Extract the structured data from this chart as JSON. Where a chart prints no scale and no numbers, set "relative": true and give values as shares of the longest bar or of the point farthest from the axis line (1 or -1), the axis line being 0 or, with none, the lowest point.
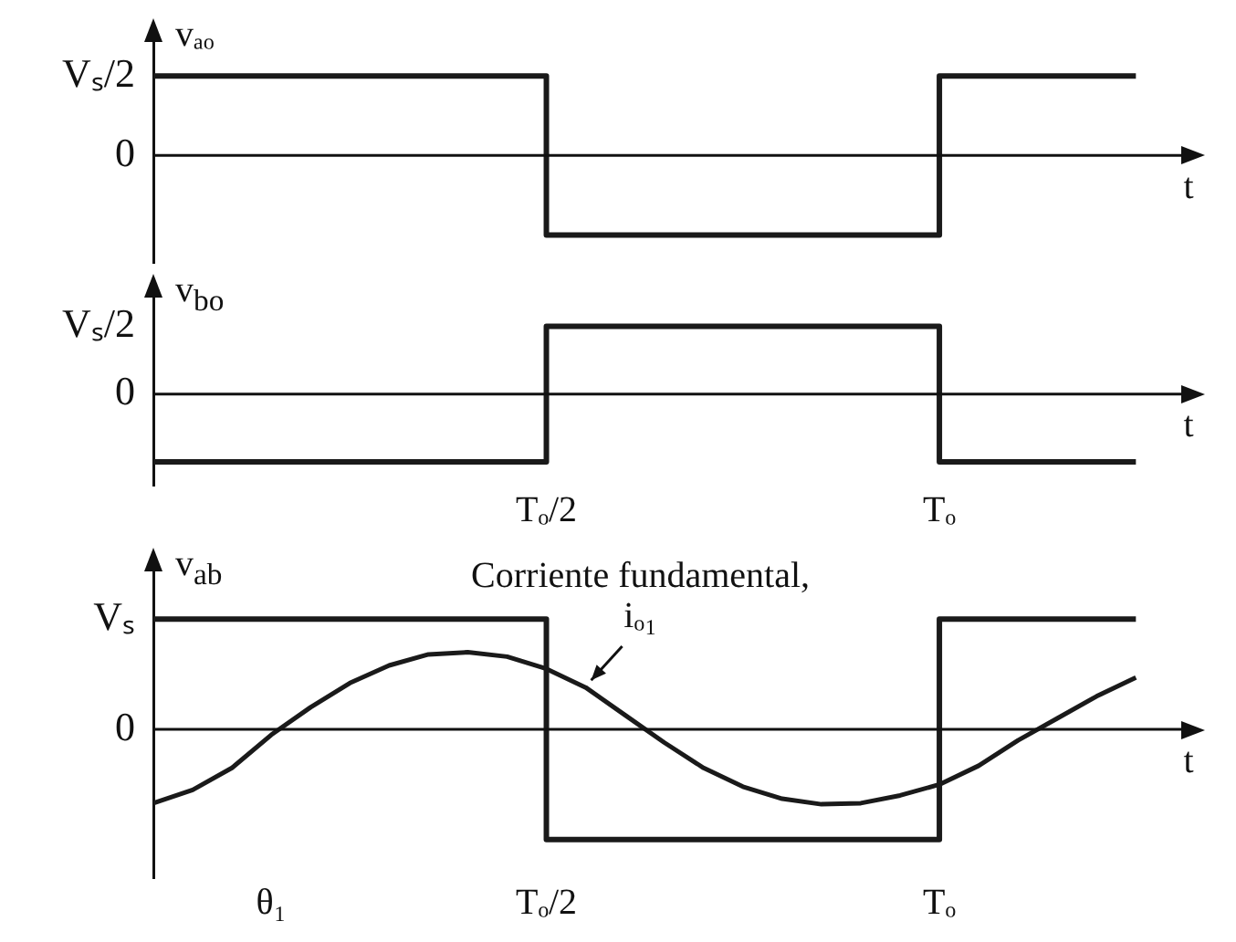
{
  "chart_data": [
    {
      "type": "step",
      "relative": true,
      "ylabel": "vₐₒ",
      "xlabel": "t",
      "grid": false,
      "legend": false,
      "categories": [
        null,
        null,
        null,
        null,
        null,
        null,
        null,
        null,
        null,
        null,
        null,
        null,
        null,
        null,
        null,
        null,
        null,
        null,
        null,
        null,
        null,
        null,
        null,
        null,
        null,
        null
      ],
      "annotations": [
        "Vₛ/2",
        "0"
      ],
      "series": [
        {
          "color": "#1a1a1a",
          "values": [
            1,
            1,
            1,
            1,
            1,
            1,
            1,
            1,
            1,
            1,
            -1,
            -1,
            -1,
            -1,
            -1,
            -1,
            -1,
            -1,
            -1,
            -1,
            1,
            1,
            1,
            1,
            1,
            1
          ]
        }
      ]
    },
    {
      "type": "step",
      "relative": true,
      "ylabel": "v$_{bo}$",
      "xlabel": "t",
      "grid": false,
      "legend": false,
      "categories": [
        null,
        null,
        null,
        null,
        null,
        null,
        null,
        null,
        null,
        null,
        "Tₒ/2",
        null,
        null,
        null,
        null,
        null,
        null,
        null,
        null,
        null,
        "Tₒ",
        null,
        null,
        null,
        null,
        null
      ],
      "annotations": [
        "Vₛ/2",
        "0"
      ],
      "series": [
        {
          "color": "#1a1a1a",
          "values": [
            -1,
            -1,
            -1,
            -1,
            -1,
            -1,
            -1,
            -1,
            -1,
            -1,
            1,
            1,
            1,
            1,
            1,
            1,
            1,
            1,
            1,
            1,
            -1,
            -1,
            -1,
            -1,
            -1,
            -1
          ]
        }
      ]
    },
    {
      "type": "step",
      "relative": true,
      "ylabel": "v$_{ab}$",
      "xlabel": "t",
      "grid": false,
      "legend": false,
      "categories": [
        null,
        null,
        null,
        "θ₁",
        null,
        null,
        null,
        null,
        null,
        null,
        "Tₒ/2",
        null,
        null,
        null,
        null,
        null,
        null,
        null,
        null,
        null,
        "Tₒ",
        null,
        null,
        null,
        null,
        null
      ],
      "annotations": [
        "Vₛ",
        "0",
        "Corriente fundamental, iₒ₁"
      ],
      "series": [
        {
          "color": "#1a1a1a",
          "values": [
            1,
            1,
            1,
            1,
            1,
            1,
            1,
            1,
            1,
            1,
            -1,
            -1,
            -1,
            -1,
            -1,
            -1,
            -1,
            -1,
            -1,
            -1,
            1,
            1,
            1,
            1,
            1,
            1
          ]
        },
        {
          "type": "line",
          "color": "#1a1a1a",
          "values": [
            -0.67,
            -0.55,
            -0.35,
            -0.05,
            0.2,
            0.42,
            0.58,
            0.68,
            0.7,
            0.66,
            0.55,
            0.38,
            0.13,
            -0.12,
            -0.35,
            -0.52,
            -0.63,
            -0.68,
            -0.67,
            -0.6,
            -0.5,
            -0.33,
            -0.1,
            0.1,
            0.3,
            0.47
          ]
        }
      ]
    }
  ]
}
